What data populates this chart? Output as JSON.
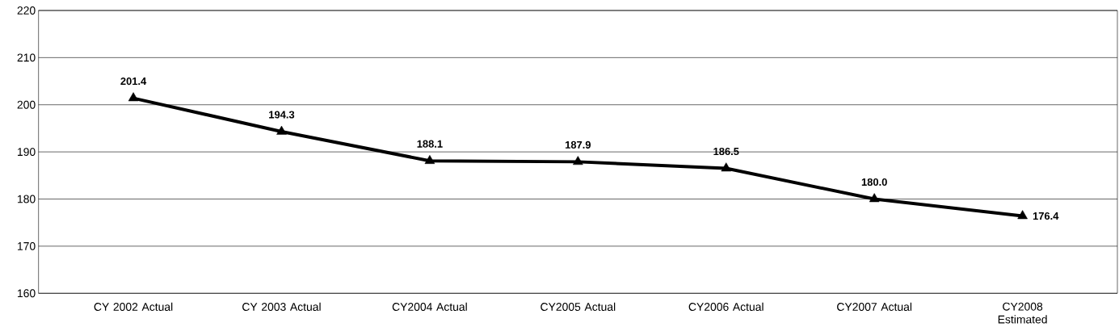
{
  "chart_data": {
    "type": "line",
    "categories": [
      "CY 2002 Actual",
      "CY 2003 Actual",
      "CY2004 Actual",
      "CY2005 Actual",
      "CY2006 Actual",
      "CY2007 Actual",
      "CY2008 Estimated"
    ],
    "values": [
      201.4,
      194.3,
      188.1,
      187.9,
      186.5,
      180.0,
      176.4
    ],
    "value_labels": [
      "201.4",
      "194.3",
      "188.1",
      "187.9",
      "186.5",
      "180.0",
      "176.4"
    ],
    "color": "#000000",
    "marker": "triangle",
    "line_style": "solid",
    "ylim": [
      160,
      220
    ],
    "yticks": [
      160,
      170,
      180,
      190,
      200,
      210,
      220
    ],
    "grid": "y"
  }
}
